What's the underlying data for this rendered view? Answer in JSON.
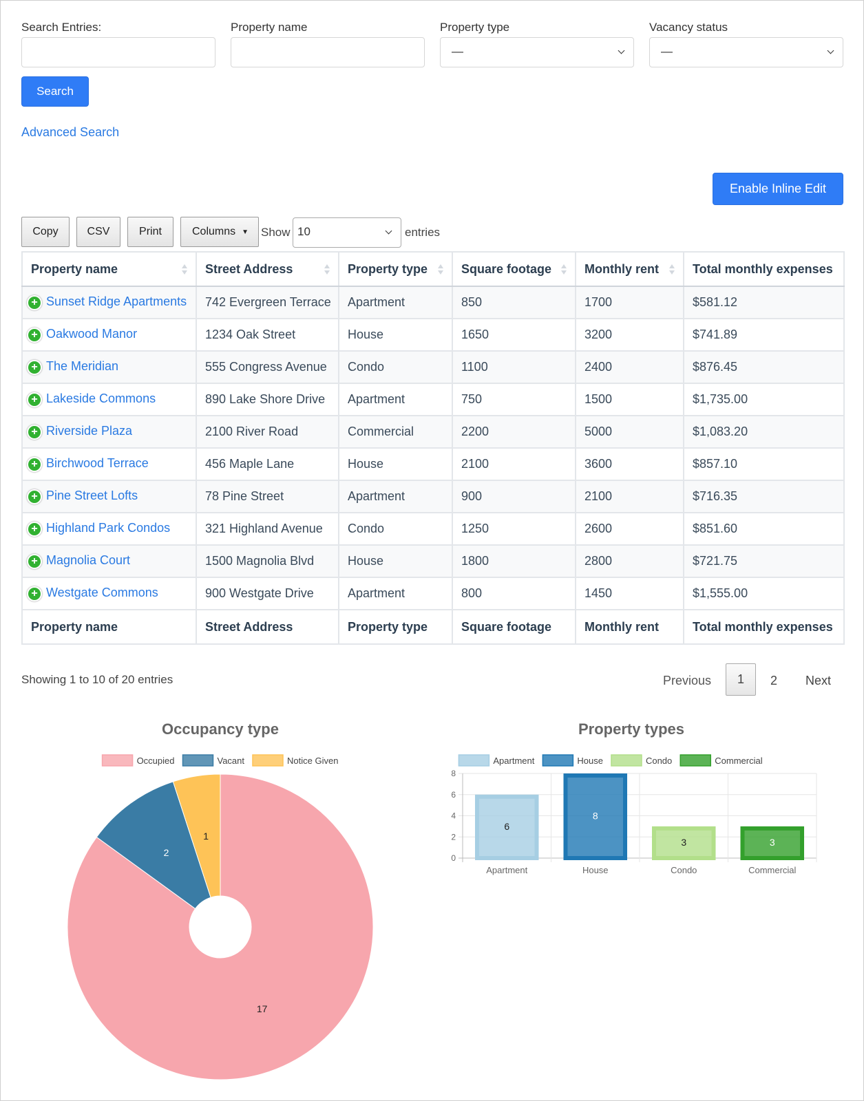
{
  "search_form": {
    "fields": [
      {
        "label": "Search Entries:"
      },
      {
        "label": "Property name"
      },
      {
        "label": "Property type",
        "value": "—"
      },
      {
        "label": "Vacancy status",
        "value": "—"
      }
    ],
    "search_button": "Search",
    "advanced_search": "Advanced Search"
  },
  "inline_edit_button": "Enable Inline Edit",
  "toolbar": {
    "buttons": [
      "Copy",
      "CSV",
      "Print",
      "Columns"
    ],
    "show_label": "Show",
    "page_length": "10",
    "entries_label": "entries"
  },
  "table": {
    "headers": [
      "Property name",
      "Street Address",
      "Property type",
      "Square footage",
      "Monthly rent",
      "Total monthly expenses"
    ],
    "rows": [
      [
        "Sunset Ridge Apartments",
        "742 Evergreen Terrace",
        "Apartment",
        "850",
        "1700",
        "$581.12"
      ],
      [
        "Oakwood Manor",
        "1234 Oak Street",
        "House",
        "1650",
        "3200",
        "$741.89"
      ],
      [
        "The Meridian",
        "555 Congress Avenue",
        "Condo",
        "1100",
        "2400",
        "$876.45"
      ],
      [
        "Lakeside Commons",
        "890 Lake Shore Drive",
        "Apartment",
        "750",
        "1500",
        "$1,735.00"
      ],
      [
        "Riverside Plaza",
        "2100 River Road",
        "Commercial",
        "2200",
        "5000",
        "$1,083.20"
      ],
      [
        "Birchwood Terrace",
        "456 Maple Lane",
        "House",
        "2100",
        "3600",
        "$857.10"
      ],
      [
        "Pine Street Lofts",
        "78 Pine Street",
        "Apartment",
        "900",
        "2100",
        "$716.35"
      ],
      [
        "Highland Park Condos",
        "321 Highland Avenue",
        "Condo",
        "1250",
        "2600",
        "$851.60"
      ],
      [
        "Magnolia Court",
        "1500 Magnolia Blvd",
        "House",
        "1800",
        "2800",
        "$721.75"
      ],
      [
        "Westgate Commons",
        "900 Westgate Drive",
        "Apartment",
        "800",
        "1450",
        "$1,555.00"
      ]
    ],
    "footer": [
      "Property name",
      "Street Address",
      "Property type",
      "Square footage",
      "Monthly rent",
      "Total monthly expenses"
    ]
  },
  "info": "Showing 1 to 10 of 20 entries",
  "pagination": {
    "previous": "Previous",
    "pages": [
      "1",
      "2"
    ],
    "next": "Next"
  },
  "chart_data": [
    {
      "type": "pie",
      "title": "Occupancy type",
      "categories": [
        "Occupied",
        "Vacant",
        "Notice Given"
      ],
      "values": [
        17,
        2,
        1
      ],
      "colors": [
        "#f7a6ad",
        "#3a7ca5",
        "#fec357"
      ]
    },
    {
      "type": "bar",
      "title": "Property types",
      "categories": [
        "Apartment",
        "House",
        "Condo",
        "Commercial"
      ],
      "values": [
        6,
        8,
        3,
        3
      ],
      "colors": [
        "#a6cee3",
        "#1f78b4",
        "#b2df8a",
        "#33a02c"
      ],
      "ylim": [
        0,
        8
      ],
      "yticks": [
        0,
        2,
        4,
        6,
        8
      ],
      "grid": true
    }
  ]
}
